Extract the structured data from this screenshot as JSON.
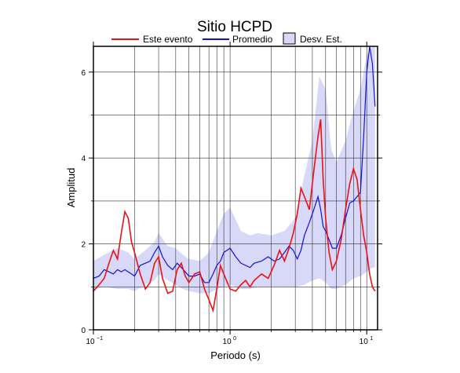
{
  "chart_data": {
    "type": "line",
    "title": "Sitio HCPD",
    "xlabel": "Periodo (s)",
    "ylabel": "Amplitud",
    "xscale": "log",
    "xlim": [
      0.1,
      12
    ],
    "ylim": [
      0,
      6.6
    ],
    "grid": true,
    "legend_position": "top",
    "x_tick_labels": [
      {
        "x": 0.1,
        "base": "10",
        "exp": "−1"
      },
      {
        "x": 1,
        "base": "10",
        "exp": "0"
      },
      {
        "x": 10,
        "base": "10",
        "exp": "1"
      }
    ],
    "y_ticks": [
      0,
      2,
      4,
      6
    ],
    "y_tick_labels": [
      "0",
      "2",
      "4",
      "6"
    ],
    "legend": [
      {
        "label": "Este evento",
        "kind": "line",
        "color": "#ee1111"
      },
      {
        "label": "Promedio",
        "kind": "line",
        "color": "#1111dd"
      },
      {
        "label": "Desv. Est.",
        "kind": "band",
        "color": "#d8d8f8"
      }
    ],
    "series": [
      {
        "name": "Este evento",
        "color": "#ee1111",
        "x": [
          0.1,
          0.11,
          0.12,
          0.13,
          0.14,
          0.15,
          0.16,
          0.17,
          0.18,
          0.19,
          0.2,
          0.22,
          0.24,
          0.26,
          0.28,
          0.3,
          0.32,
          0.35,
          0.38,
          0.41,
          0.44,
          0.47,
          0.5,
          0.55,
          0.6,
          0.65,
          0.7,
          0.75,
          0.8,
          0.85,
          0.9,
          1.0,
          1.1,
          1.2,
          1.3,
          1.4,
          1.5,
          1.7,
          1.9,
          2.1,
          2.3,
          2.5,
          2.7,
          2.9,
          3.1,
          3.3,
          3.5,
          3.8,
          4.1,
          4.4,
          4.6,
          4.8,
          5.0,
          5.3,
          5.6,
          6.0,
          6.5,
          7.0,
          7.5,
          8.0,
          8.5,
          9.0,
          9.5,
          10.0,
          10.5,
          11.0,
          11.5
        ],
        "y": [
          0.9,
          1.05,
          1.2,
          1.55,
          1.85,
          1.65,
          2.25,
          2.75,
          2.6,
          2.05,
          1.8,
          1.3,
          0.95,
          1.1,
          1.55,
          1.7,
          1.2,
          0.85,
          0.9,
          1.4,
          1.55,
          1.25,
          1.1,
          1.3,
          1.35,
          0.95,
          0.7,
          0.45,
          0.95,
          1.5,
          1.3,
          0.95,
          0.9,
          1.05,
          1.15,
          1.0,
          1.15,
          1.3,
          1.2,
          1.5,
          1.85,
          1.6,
          1.9,
          2.25,
          2.7,
          3.3,
          3.1,
          2.8,
          3.7,
          4.5,
          4.9,
          3.5,
          2.6,
          1.8,
          1.4,
          1.6,
          2.1,
          2.8,
          3.4,
          3.75,
          3.5,
          2.8,
          2.2,
          1.8,
          1.3,
          1.0,
          0.9
        ]
      },
      {
        "name": "Promedio",
        "color": "#1111dd",
        "x": [
          0.1,
          0.11,
          0.12,
          0.13,
          0.14,
          0.15,
          0.16,
          0.17,
          0.18,
          0.19,
          0.2,
          0.22,
          0.24,
          0.26,
          0.28,
          0.3,
          0.32,
          0.35,
          0.38,
          0.41,
          0.44,
          0.47,
          0.5,
          0.55,
          0.6,
          0.65,
          0.7,
          0.75,
          0.8,
          0.85,
          0.9,
          1.0,
          1.1,
          1.2,
          1.3,
          1.4,
          1.5,
          1.7,
          1.9,
          2.1,
          2.3,
          2.5,
          2.7,
          2.9,
          3.1,
          3.3,
          3.5,
          3.8,
          4.1,
          4.4,
          4.6,
          4.8,
          5.0,
          5.3,
          5.6,
          6.0,
          6.5,
          7.0,
          7.5,
          8.0,
          8.5,
          9.0,
          9.5,
          10.0,
          10.5,
          11.0,
          11.5
        ],
        "y": [
          1.2,
          1.25,
          1.4,
          1.35,
          1.3,
          1.4,
          1.35,
          1.4,
          1.35,
          1.3,
          1.25,
          1.5,
          1.55,
          1.6,
          1.8,
          1.95,
          1.7,
          1.5,
          1.4,
          1.55,
          1.45,
          1.35,
          1.25,
          1.25,
          1.3,
          1.1,
          1.1,
          1.3,
          1.5,
          1.6,
          1.8,
          1.9,
          1.7,
          1.55,
          1.5,
          1.45,
          1.55,
          1.6,
          1.7,
          1.6,
          1.65,
          1.8,
          1.95,
          1.85,
          1.65,
          1.85,
          2.2,
          2.5,
          2.8,
          3.1,
          2.8,
          2.4,
          2.3,
          2.1,
          1.9,
          1.9,
          2.2,
          2.6,
          2.95,
          3.0,
          3.1,
          3.2,
          4.5,
          6.0,
          6.6,
          6.2,
          5.2
        ]
      }
    ],
    "band": {
      "name": "Desv. Est.",
      "color": "#d8d8f8",
      "x": [
        0.1,
        0.12,
        0.15,
        0.18,
        0.2,
        0.24,
        0.28,
        0.3,
        0.35,
        0.4,
        0.45,
        0.5,
        0.6,
        0.7,
        0.8,
        0.9,
        1.0,
        1.2,
        1.4,
        1.6,
        2.0,
        2.5,
        3.0,
        3.5,
        4.0,
        4.5,
        5.0,
        5.5,
        6.0,
        7.0,
        8.0,
        9.0,
        10.0,
        11.0,
        11.5
      ],
      "upper": [
        1.6,
        1.75,
        1.9,
        1.8,
        1.65,
        1.85,
        2.05,
        2.25,
        1.95,
        1.9,
        1.75,
        1.65,
        1.6,
        1.8,
        2.3,
        2.7,
        2.85,
        2.3,
        2.2,
        2.25,
        2.2,
        2.3,
        2.6,
        3.6,
        4.4,
        5.9,
        5.6,
        4.2,
        3.9,
        4.4,
        5.1,
        5.6,
        6.4,
        6.6,
        6.6
      ],
      "lower": [
        0.95,
        1.0,
        0.95,
        0.95,
        0.9,
        1.05,
        1.15,
        1.3,
        1.15,
        1.05,
        0.95,
        0.9,
        0.85,
        0.85,
        0.95,
        1.0,
        1.05,
        0.95,
        0.95,
        1.0,
        1.0,
        1.0,
        1.0,
        1.05,
        1.15,
        1.2,
        1.1,
        0.95,
        0.95,
        1.05,
        1.2,
        1.25,
        1.35,
        1.45,
        1.45
      ]
    }
  }
}
